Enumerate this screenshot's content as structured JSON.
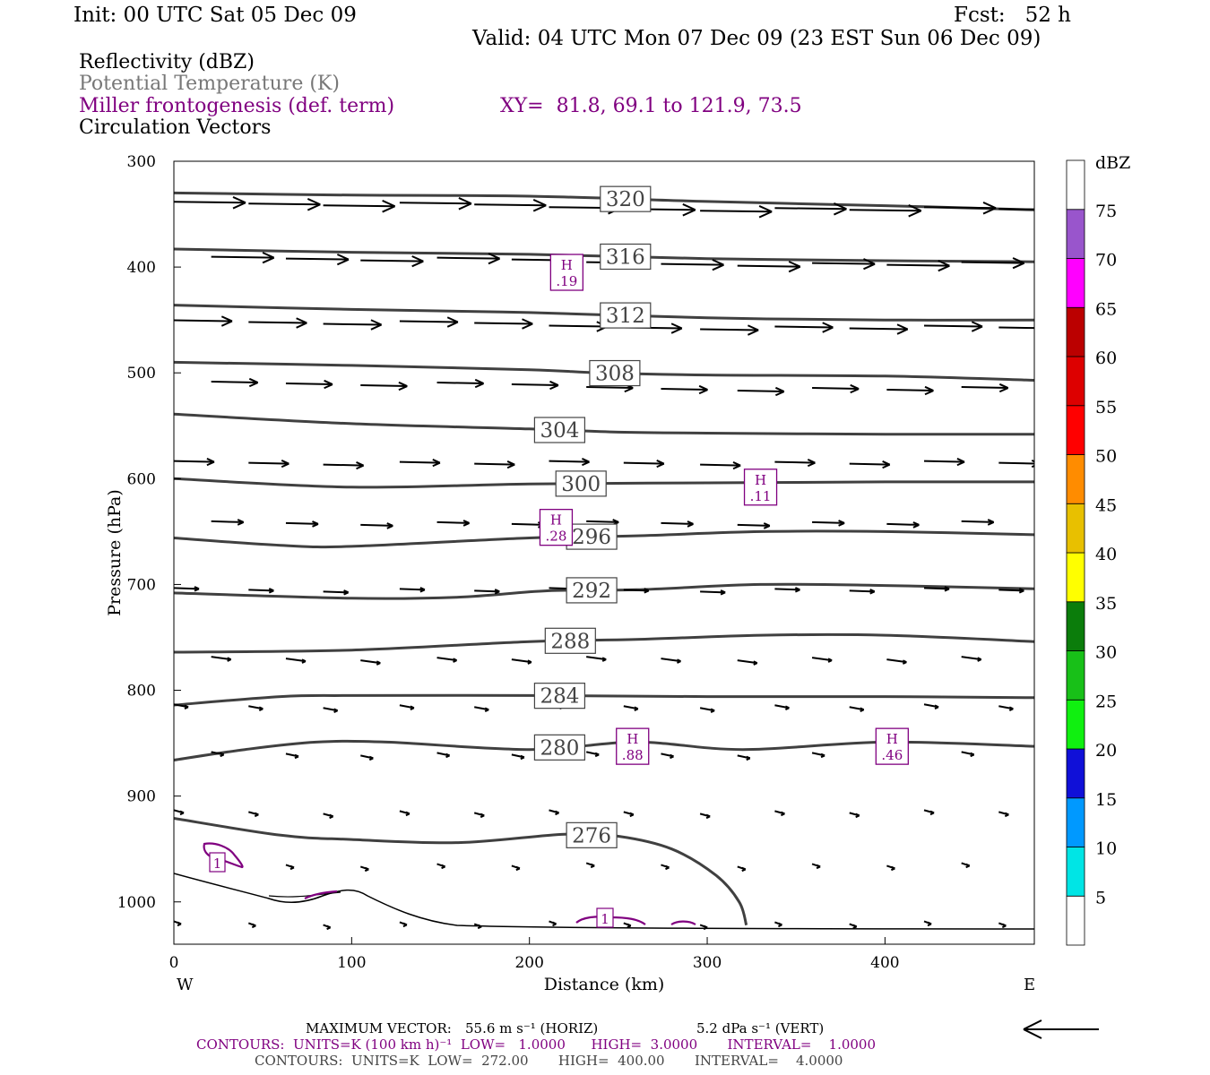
{
  "header": {
    "init": "Init: 00 UTC Sat 05 Dec 09",
    "fcst": "Fcst:   52 h",
    "valid": "Valid: 04 UTC Mon 07 Dec 09 (23 EST Sun 06 Dec 09)"
  },
  "legend": {
    "reflectivity": "Reflectivity (dBZ)",
    "theta": "Potential Temperature (K)",
    "frontogenesis": "Miller frontogenesis (def. term)",
    "xy": "XY=  81.8, 69.1 to 121.9, 73.5",
    "vectors": "Circulation Vectors"
  },
  "colors": {
    "theta": "#404040",
    "frontogenesis": "#800080",
    "vectors": "#000000"
  },
  "chart_data": {
    "type": "line",
    "xlabel": "Distance (km)",
    "ylabel": "Pressure (hPa)",
    "xlim": [
      0,
      484
    ],
    "ylim": [
      1040,
      300
    ],
    "x_ticks": [
      0,
      100,
      200,
      300,
      400
    ],
    "y_ticks": [
      300,
      400,
      500,
      600,
      700,
      800,
      900,
      1000
    ],
    "x_end_labels": {
      "left": "W",
      "right": "E"
    },
    "isentropes": [
      {
        "theta": 320,
        "label_x": 254,
        "points": [
          [
            0,
            330
          ],
          [
            100,
            332
          ],
          [
            200,
            333
          ],
          [
            300,
            338
          ],
          [
            400,
            342
          ],
          [
            484,
            346
          ]
        ]
      },
      {
        "theta": 316,
        "label_x": 254,
        "points": [
          [
            0,
            383
          ],
          [
            100,
            386
          ],
          [
            200,
            388
          ],
          [
            300,
            392
          ],
          [
            400,
            394
          ],
          [
            484,
            395
          ]
        ]
      },
      {
        "theta": 312,
        "label_x": 254,
        "points": [
          [
            0,
            436
          ],
          [
            100,
            440
          ],
          [
            200,
            443
          ],
          [
            300,
            448
          ],
          [
            400,
            450
          ],
          [
            484,
            450
          ]
        ]
      },
      {
        "theta": 308,
        "label_x": 248,
        "points": [
          [
            0,
            490
          ],
          [
            100,
            493
          ],
          [
            200,
            497
          ],
          [
            240,
            500
          ],
          [
            300,
            502
          ],
          [
            400,
            503
          ],
          [
            484,
            507
          ]
        ]
      },
      {
        "theta": 304,
        "label_x": 217,
        "points": [
          [
            0,
            539
          ],
          [
            100,
            548
          ],
          [
            200,
            553
          ],
          [
            250,
            556
          ],
          [
            300,
            557
          ],
          [
            400,
            558
          ],
          [
            484,
            558
          ]
        ]
      },
      {
        "theta": 300,
        "label_x": 229,
        "points": [
          [
            0,
            600
          ],
          [
            100,
            608
          ],
          [
            200,
            605
          ],
          [
            300,
            604
          ],
          [
            400,
            603
          ],
          [
            484,
            603
          ]
        ]
      },
      {
        "theta": 296,
        "label_x": 235,
        "points": [
          [
            0,
            656
          ],
          [
            60,
            663
          ],
          [
            100,
            664
          ],
          [
            200,
            656
          ],
          [
            260,
            654
          ],
          [
            330,
            650
          ],
          [
            400,
            650
          ],
          [
            484,
            653
          ]
        ]
      },
      {
        "theta": 292,
        "label_x": 235,
        "points": [
          [
            0,
            708
          ],
          [
            100,
            713
          ],
          [
            160,
            712
          ],
          [
            210,
            706
          ],
          [
            260,
            705
          ],
          [
            330,
            700
          ],
          [
            400,
            701
          ],
          [
            484,
            704
          ]
        ]
      },
      {
        "theta": 288,
        "label_x": 223,
        "points": [
          [
            0,
            764
          ],
          [
            100,
            762
          ],
          [
            200,
            754
          ],
          [
            260,
            752
          ],
          [
            330,
            748
          ],
          [
            400,
            748
          ],
          [
            484,
            754
          ]
        ]
      },
      {
        "theta": 284,
        "label_x": 217,
        "points": [
          [
            0,
            814
          ],
          [
            60,
            806
          ],
          [
            100,
            805
          ],
          [
            200,
            805
          ],
          [
            300,
            806
          ],
          [
            400,
            806
          ],
          [
            484,
            807
          ]
        ]
      },
      {
        "theta": 280,
        "label_x": 217,
        "points": [
          [
            0,
            866
          ],
          [
            40,
            856
          ],
          [
            80,
            849
          ],
          [
            120,
            849
          ],
          [
            200,
            856
          ],
          [
            260,
            849
          ],
          [
            320,
            856
          ],
          [
            400,
            849
          ],
          [
            484,
            853
          ]
        ]
      },
      {
        "theta": 276,
        "label_x": 235,
        "points": [
          [
            0,
            921
          ],
          [
            60,
            937
          ],
          [
            100,
            941
          ],
          [
            160,
            944
          ],
          [
            220,
            936
          ],
          [
            250,
            938
          ],
          [
            280,
            950
          ],
          [
            305,
            975
          ],
          [
            318,
            1000
          ],
          [
            322,
            1022
          ]
        ]
      }
    ],
    "isentrope_labels_shown": [
      "320",
      "316",
      "312",
      "308",
      "304",
      "300",
      "296",
      "292",
      "288",
      "284",
      "280",
      "276"
    ],
    "maxima": [
      {
        "label": "H",
        "value": ".19",
        "x": 221,
        "p": 405
      },
      {
        "label": "H",
        "value": ".11",
        "x": 330,
        "p": 608
      },
      {
        "label": "H",
        "value": ".28",
        "x": 215,
        "p": 646
      },
      {
        "label": "H",
        "value": ".88",
        "x": 258,
        "p": 853
      },
      {
        "label": "H",
        "value": ".46",
        "x": 404,
        "p": 853
      }
    ],
    "frontogenesis_contour_labels": [
      "1",
      "1"
    ],
    "vector_rows": [
      {
        "p": 340,
        "len": 80
      },
      {
        "p": 392,
        "len": 70
      },
      {
        "p": 452,
        "len": 65
      },
      {
        "p": 510,
        "len": 52
      },
      {
        "p": 585,
        "len": 45
      },
      {
        "p": 642,
        "len": 36
      },
      {
        "p": 705,
        "len": 28
      },
      {
        "p": 770,
        "len": 22
      },
      {
        "p": 815,
        "len": 16
      },
      {
        "p": 860,
        "len": 14
      },
      {
        "p": 915,
        "len": 11
      },
      {
        "p": 965,
        "len": 9
      },
      {
        "p": 1020,
        "len": 8
      }
    ],
    "colorbar": {
      "label": "dBZ",
      "levels": [
        "5",
        "10",
        "15",
        "20",
        "25",
        "30",
        "35",
        "40",
        "45",
        "50",
        "55",
        "60",
        "65",
        "70",
        "75"
      ],
      "colors": [
        "#ffffff",
        "#00e5e5",
        "#0099ff",
        "#1010d8",
        "#10f010",
        "#18c018",
        "#0b7d0b",
        "#ffff00",
        "#e8c000",
        "#ff8c00",
        "#ff0000",
        "#dd0000",
        "#bb0000",
        "#ff00ff",
        "#9955cc",
        "#ffffff"
      ]
    }
  },
  "footer": {
    "max_vector_label": "MAXIMUM VECTOR:",
    "max_vector_horiz": "55.6 m s⁻¹ (HORIZ)",
    "max_vector_vert": "5.2 dPa s⁻¹ (VERT)",
    "contours_purple": "CONTOURS:  UNITS=K (100 km h)⁻¹  LOW=   1.0000      HIGH=  3.0000       INTERVAL=    1.0000",
    "contours_black": "CONTOURS:  UNITS=K  LOW=  272.00       HIGH=  400.00       INTERVAL=    4.0000"
  }
}
